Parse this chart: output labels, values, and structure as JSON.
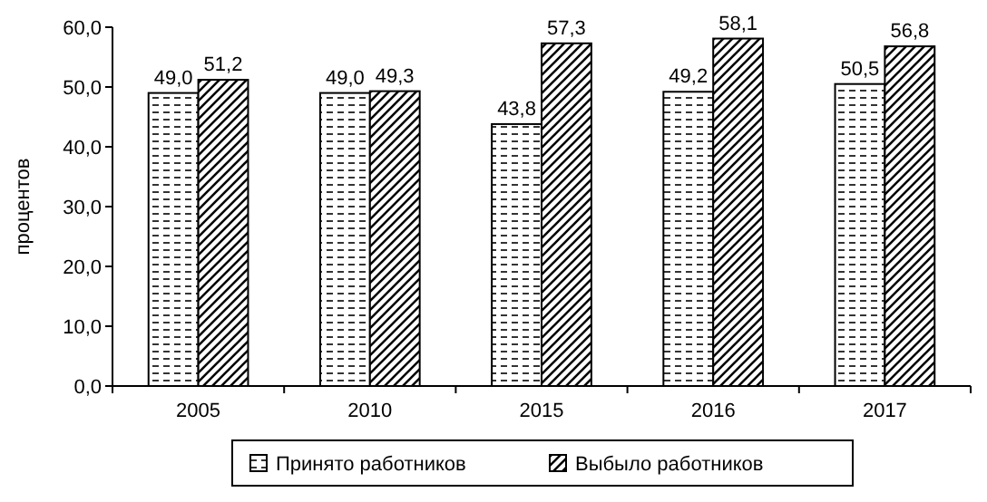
{
  "chart_data": {
    "type": "bar",
    "ylabel": "процентов",
    "categories": [
      "2005",
      "2010",
      "2015",
      "2016",
      "2017"
    ],
    "series": [
      {
        "name": "Принято работников",
        "color": "#000000",
        "values": [
          49.0,
          49.0,
          43.8,
          49.2,
          50.5
        ],
        "value_labels": [
          "49,0",
          "49,0",
          "43,8",
          "49,2",
          "50,5"
        ]
      },
      {
        "name": "Выбыло работников",
        "color": "#000000",
        "values": [
          51.2,
          49.3,
          57.3,
          58.1,
          56.8
        ],
        "value_labels": [
          "51,2",
          "49,3",
          "57,3",
          "58,1",
          "56,8"
        ]
      }
    ],
    "ylim": [
      0,
      60
    ],
    "yticks": [
      {
        "value": 0,
        "label": "0,0"
      },
      {
        "value": 10,
        "label": "10,0"
      },
      {
        "value": 20,
        "label": "20,0"
      },
      {
        "value": 30,
        "label": "30,0"
      },
      {
        "value": 40,
        "label": "40,0"
      },
      {
        "value": 50,
        "label": "50,0"
      },
      {
        "value": 60,
        "label": "60,0"
      }
    ],
    "grid": false,
    "legend": "bottom"
  }
}
